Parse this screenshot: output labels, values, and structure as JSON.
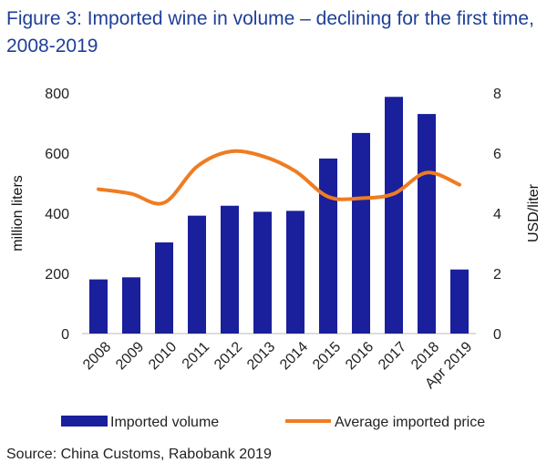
{
  "figure": {
    "title": "Figure 3: Imported wine in volume – declining for the first time, 2008-2019",
    "source": "Source: China Customs, Rabobank 2019"
  },
  "colors": {
    "title": "#1f3f97",
    "bars": "#1a1f9b",
    "line": "#ef7c22"
  },
  "chart_data": {
    "type": "bar",
    "categories": [
      "2008",
      "2009",
      "2010",
      "2011",
      "2012",
      "2013",
      "2014",
      "2015",
      "2016",
      "2017",
      "2018",
      "Apr 2019"
    ],
    "series": [
      {
        "name": "Imported volume",
        "type": "bar",
        "axis": "left",
        "values": [
          180,
          187,
          303,
          392,
          425,
          405,
          408,
          582,
          667,
          787,
          730,
          213
        ]
      },
      {
        "name": "Average imported price",
        "type": "line",
        "axis": "right",
        "values": [
          4.8,
          4.65,
          4.35,
          5.55,
          6.05,
          5.9,
          5.4,
          4.55,
          4.5,
          4.65,
          5.35,
          4.95
        ]
      }
    ],
    "ylabel": "million liters",
    "ylim": [
      0,
      800
    ],
    "yticks": [
      "0",
      "200",
      "400",
      "600",
      "800"
    ],
    "y2label": "USD/liter",
    "y2lim": [
      0,
      8
    ],
    "y2ticks": [
      "0",
      "2",
      "4",
      "6",
      "8"
    ],
    "legend": [
      "Imported volume",
      "Average imported price"
    ],
    "legend_position": "bottom"
  }
}
